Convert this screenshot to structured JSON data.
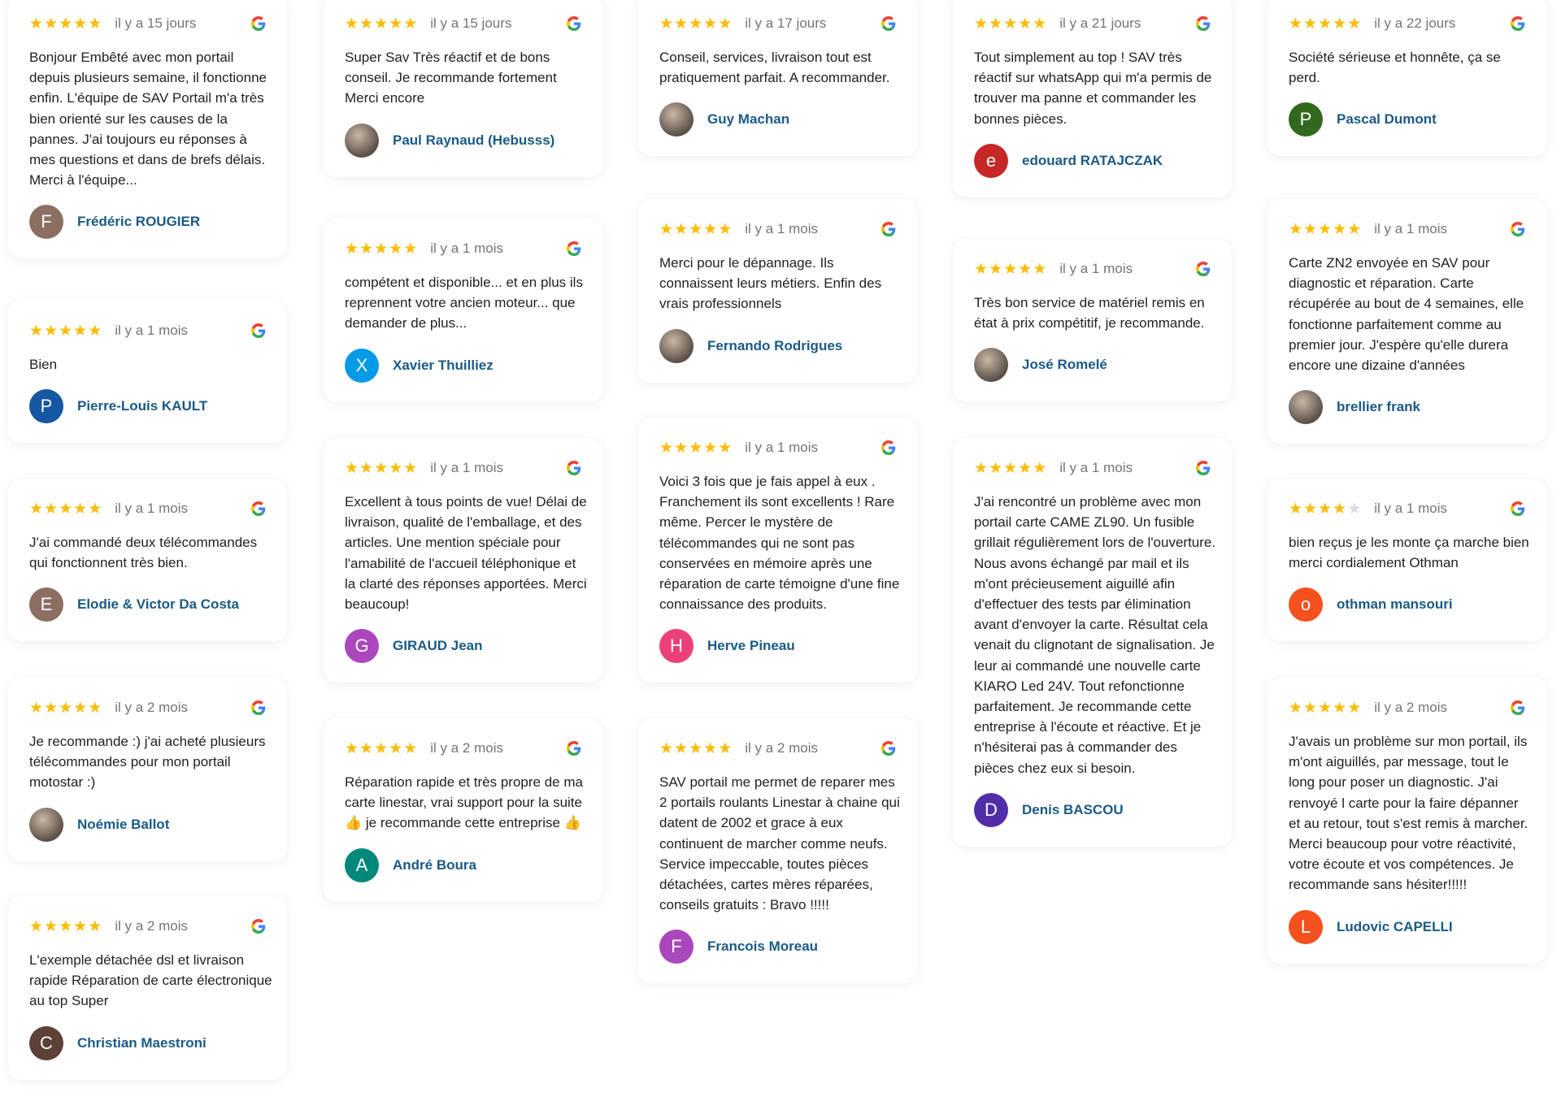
{
  "colors": {
    "star": "#fbbc04",
    "name": "#1a5a85",
    "date": "#70757a"
  },
  "columns": [
    [
      {
        "rating": 5,
        "date": "il y a 15 jours",
        "text": "Bonjour Embêté avec mon portail depuis plusieurs semaine, il fonctionne enfin. L'équipe de SAV Portail m'a très bien orienté sur les causes de la pannes. J'ai toujours eu réponses à mes questions et dans de brefs délais. Merci à l'équipe...",
        "name": "Frédéric ROUGIER",
        "initial": "F",
        "avatar_color": "#8d6e63"
      },
      {
        "rating": 5,
        "date": "il y a 1 mois",
        "text": "Bien",
        "name": "Pierre-Louis KAULT",
        "initial": "P",
        "avatar_color": "#1557a0"
      },
      {
        "rating": 5,
        "date": "il y a 1 mois",
        "text": "J'ai commandé deux télécommandes qui fonctionnent très bien.",
        "name": "Elodie & Victor Da Costa",
        "initial": "E",
        "avatar_color": "#8d6e63"
      },
      {
        "rating": 5,
        "date": "il y a 2 mois",
        "text": "Je recommande :) j'ai acheté plusieurs télécommandes pour mon portail motostar :)",
        "name": "Noémie Ballot",
        "initial": "",
        "avatar_color": "photo"
      },
      {
        "rating": 5,
        "date": "il y a 2 mois",
        "text": "L'exemple détachée dsl et livraison rapide Réparation de carte électronique au top Super",
        "name": "Christian Maestroni",
        "initial": "C",
        "avatar_color": "#5d4037"
      }
    ],
    [
      {
        "rating": 5,
        "date": "il y a 15 jours",
        "text": "Super Sav Très réactif et de bons conseil. Je recommande fortement Merci encore",
        "name": "Paul Raynaud (Hebusss)",
        "initial": "",
        "avatar_color": "photo"
      },
      {
        "rating": 5,
        "date": "il y a 1 mois",
        "text": "compétent et disponible... et en plus ils reprennent votre ancien moteur... que demander de plus...",
        "name": "Xavier Thuilliez",
        "initial": "X",
        "avatar_color": "#039be5"
      },
      {
        "rating": 5,
        "date": "il y a 1 mois",
        "text": "Excellent à tous points de vue! Délai de livraison, qualité de l'emballage, et des articles. Une mention spéciale pour l'amabilité de l'accueil téléphonique et la clarté des réponses apportées. Merci beaucoup!",
        "name": "GIRAUD Jean",
        "initial": "G",
        "avatar_color": "#ab47bc"
      },
      {
        "rating": 5,
        "date": "il y a 2 mois",
        "text": "Réparation rapide et très propre de ma carte linestar, vrai support pour la suite 👍 je recommande cette entreprise 👍",
        "name": "André Boura",
        "initial": "A",
        "avatar_color": "#00897b"
      }
    ],
    [
      {
        "rating": 5,
        "date": "il y a 17 jours",
        "text": "Conseil, services, livraison tout est pratiquement parfait. A recommander.",
        "name": "Guy Machan",
        "initial": "",
        "avatar_color": "photo"
      },
      {
        "rating": 5,
        "date": "il y a 1 mois",
        "text": "Merci pour le dépannage. Ils connaissent leurs métiers. Enfin des vrais professionnels",
        "name": "Fernando Rodrigues",
        "initial": "",
        "avatar_color": "photo"
      },
      {
        "rating": 5,
        "date": "il y a 1 mois",
        "text": "Voici 3 fois que je fais appel à eux . Franchement ils sont excellents ! Rare même. Percer le mystère de télécommandes qui ne sont pas conservées en mémoire après une réparation de carte témoigne d'une fine connaissance des produits.",
        "name": "Herve Pineau",
        "initial": "H",
        "avatar_color": "#ec407a"
      },
      {
        "rating": 5,
        "date": "il y a 2 mois",
        "text": "SAV portail me permet de reparer mes 2 portails roulants Linestar à chaine qui datent de 2002 et grace à eux continuent de marcher comme neufs. Service impeccable, toutes pièces détachées, cartes mères réparées, conseils gratuits : Bravo !!!!!",
        "name": "Francois Moreau",
        "initial": "F",
        "avatar_color": "#ab47bc"
      }
    ],
    [
      {
        "rating": 5,
        "date": "il y a 21 jours",
        "text": "Tout simplement au top ! SAV très réactif sur whatsApp qui m'a permis de trouver ma panne et commander les bonnes pièces.",
        "name": "edouard RATAJCZAK",
        "initial": "e",
        "avatar_color": "#c62828"
      },
      {
        "rating": 5,
        "date": "il y a 1 mois",
        "text": "Très bon service de matériel remis en état à prix compétitif, je recommande.",
        "name": "José Romelé",
        "initial": "",
        "avatar_color": "photo"
      },
      {
        "rating": 5,
        "date": "il y a 1 mois",
        "text": "J'ai rencontré un problème avec mon portail carte CAME ZL90. Un fusible grillait régulièrement lors de l'ouverture. Nous avons échangé par mail et ils m'ont précieusement aiguillé afin d'effectuer des tests par élimination avant d'envoyer la carte. Résultat cela venait du clignotant de signalisation. Je leur ai commandé une nouvelle carte KIARO Led 24V. Tout refonctionne parfaitement. Je recommande cette entreprise à l'écoute et réactive. Et je n'hésiterai pas à commander des pièces chez eux si besoin.",
        "name": "Denis BASCOU",
        "initial": "D",
        "avatar_color": "#512da8"
      }
    ],
    [
      {
        "rating": 5,
        "date": "il y a 22 jours",
        "text": "Société sérieuse et honnête, ça se perd.",
        "name": "Pascal Dumont",
        "initial": "P",
        "avatar_color": "#33691e"
      },
      {
        "rating": 5,
        "date": "il y a 1 mois",
        "text": "Carte ZN2 envoyée en SAV pour diagnostic et réparation. Carte récupérée au bout de 4 semaines, elle fonctionne parfaitement comme au premier jour. J'espère qu'elle durera encore une dizaine d'années",
        "name": "brellier frank",
        "initial": "",
        "avatar_color": "photo"
      },
      {
        "rating": 4,
        "date": "il y a 1 mois",
        "text": "bien reçus je les monte ça marche bien merci cordialement Othman",
        "name": "othman mansouri",
        "initial": "o",
        "avatar_color": "#f4511e"
      },
      {
        "rating": 5,
        "date": "il y a 2 mois",
        "text": "J'avais un problème sur mon portail, ils m'ont aiguillés, par message, tout le long pour poser un diagnostic. J'ai renvoyé l carte pour la faire dépanner et au retour, tout s'est remis à marcher. Merci beaucoup pour votre réactivité, votre écoute et vos compétences. Je recommande sans hésiter!!!!!",
        "name": "Ludovic CAPELLI",
        "initial": "L",
        "avatar_color": "#f4511e"
      }
    ]
  ]
}
